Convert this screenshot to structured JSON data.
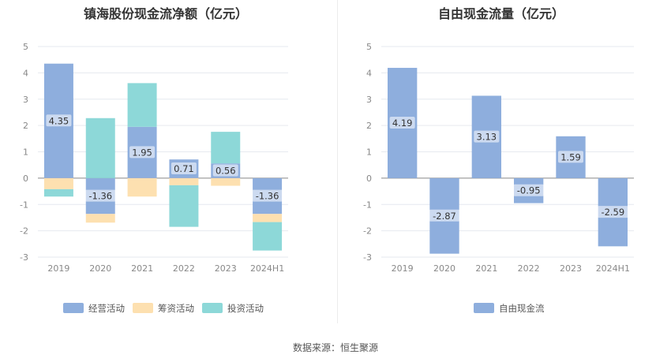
{
  "page": {
    "source": "数据来源：恒生聚源"
  },
  "chart_data": [
    {
      "type": "bar",
      "title": "镇海股份现金流净额（亿元）",
      "categories": [
        "2019",
        "2020",
        "2021",
        "2022",
        "2023",
        "2024H1"
      ],
      "ylim": [
        -3,
        5
      ],
      "yticks": [
        5,
        4,
        3,
        2,
        1,
        0,
        -1,
        -2,
        -3
      ],
      "stacked": true,
      "grid": true,
      "legend_position": "bottom",
      "series": [
        {
          "name": "经营活动",
          "color": "#8eaedd",
          "values": [
            4.35,
            -1.36,
            1.95,
            0.71,
            0.56,
            -1.36
          ],
          "labels": [
            "4.35",
            "-1.36",
            "1.95",
            "0.71",
            "0.56",
            "-1.36"
          ]
        },
        {
          "name": "筹资活动",
          "color": "#fde0b0",
          "values": [
            -0.42,
            -0.33,
            -0.7,
            -0.27,
            -0.29,
            -0.31
          ]
        },
        {
          "name": "投资活动",
          "color": "#8dd8d8",
          "values": [
            -0.28,
            2.28,
            1.66,
            -1.58,
            1.2,
            -1.08
          ]
        }
      ]
    },
    {
      "type": "bar",
      "title": "自由现金流量（亿元）",
      "categories": [
        "2019",
        "2020",
        "2021",
        "2022",
        "2023",
        "2024H1"
      ],
      "ylim": [
        -3,
        5
      ],
      "yticks": [
        5,
        4,
        3,
        2,
        1,
        0,
        -1,
        -2,
        -3
      ],
      "grid": true,
      "legend_position": "bottom",
      "series": [
        {
          "name": "自由现金流",
          "color": "#8eaedd",
          "values": [
            4.19,
            -2.87,
            3.13,
            -0.95,
            1.59,
            -2.59
          ],
          "labels": [
            "4.19",
            "-2.87",
            "3.13",
            "-0.95",
            "1.59",
            "-2.59"
          ]
        }
      ]
    }
  ]
}
